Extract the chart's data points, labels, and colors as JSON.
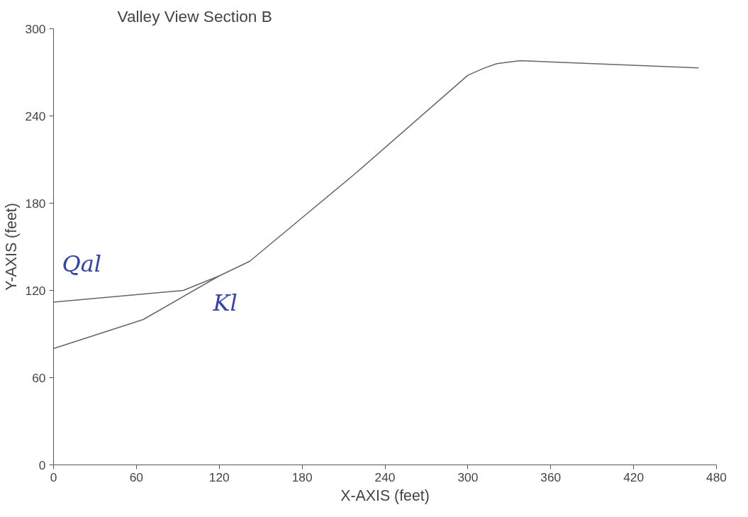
{
  "chart_data": {
    "type": "line",
    "title": "Valley View Section B",
    "xlabel": "X-AXIS (feet)",
    "ylabel": "Y-AXIS (feet)",
    "series": [
      {
        "color": "#666666",
        "x": [
          0,
          94,
          120,
          142,
          218,
          300,
          312,
          321,
          338,
          467
        ],
        "values": [
          112,
          120,
          130,
          140,
          200,
          268,
          273,
          276,
          278,
          273
        ]
      },
      {
        "color": "#666666",
        "x": [
          0,
          65,
          120
        ],
        "values": [
          80,
          100,
          130
        ]
      }
    ],
    "annotations": [
      "Qal",
      "Kl"
    ],
    "xlim": [
      0,
      480
    ],
    "ylim": [
      0,
      300
    ],
    "xticks": [
      0,
      60,
      120,
      180,
      240,
      300,
      360,
      420,
      480
    ],
    "yticks": [
      0,
      60,
      120,
      180,
      240,
      300
    ],
    "grid": false,
    "marker": "none",
    "line_style": "solid"
  }
}
